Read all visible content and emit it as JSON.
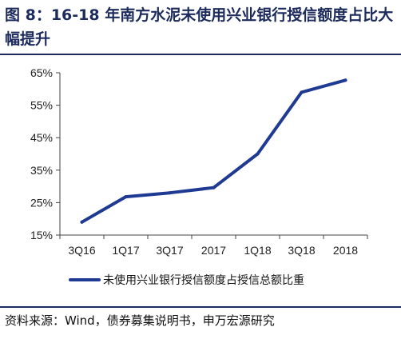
{
  "figure": {
    "title": "图 8：16-18 年南方水泥未使用兴业银行授信额度占比大幅提升",
    "source": "资料来源：Wind，债券募集说明书，申万宏源研究"
  },
  "chart_data": {
    "type": "line",
    "title": "",
    "xlabel": "",
    "ylabel": "",
    "categories": [
      "3Q16",
      "1Q17",
      "3Q17",
      "2017",
      "1Q18",
      "3Q18",
      "2018"
    ],
    "series": [
      {
        "name": "未使用兴业银行授信额度占授信总额比重",
        "values": [
          19,
          26.8,
          28,
          29.6,
          40,
          59,
          62.7
        ],
        "color": "#1f3a93"
      }
    ],
    "y_ticks": [
      "65%",
      "55%",
      "45%",
      "35%",
      "25%",
      "15%"
    ],
    "ylim": [
      15,
      65
    ],
    "y_unit": "%",
    "grid": false,
    "legend_position": "bottom"
  }
}
